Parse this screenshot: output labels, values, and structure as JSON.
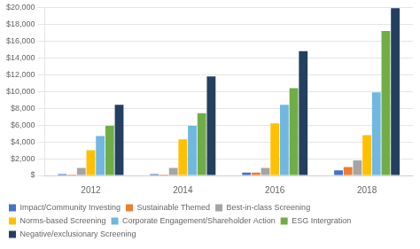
{
  "chart_data": {
    "type": "bar",
    "categories": [
      "2012",
      "2014",
      "2016",
      "2018"
    ],
    "series": [
      {
        "name": "Impact/Community Investing",
        "color": "#4472c4",
        "values": [
          150,
          150,
          350,
          600
        ]
      },
      {
        "name": "Sustainable Themed",
        "color": "#ed7d31",
        "values": [
          100,
          100,
          350,
          1000
        ]
      },
      {
        "name": "Best-in-class Screening",
        "color": "#a5a5a5",
        "values": [
          900,
          900,
          900,
          1800
        ]
      },
      {
        "name": "Norms-based Screening",
        "color": "#ffc000",
        "values": [
          3000,
          4300,
          6200,
          4800
        ]
      },
      {
        "name": "Corporate Engagement/Shareholder Action",
        "color": "#70b8e0",
        "values": [
          4700,
          5900,
          8400,
          9900
        ]
      },
      {
        "name": "ESG Intergration",
        "color": "#70ad47",
        "values": [
          5900,
          7400,
          10400,
          17200
        ]
      },
      {
        "name": "Negative/exclusionary Screening",
        "color": "#243f60",
        "values": [
          8400,
          11800,
          14800,
          19900
        ]
      }
    ],
    "ylim": [
      0,
      20000
    ],
    "yticks": [
      {
        "value": 0,
        "label": "$"
      },
      {
        "value": 2000,
        "label": "$2,000"
      },
      {
        "value": 4000,
        "label": "$4,000"
      },
      {
        "value": 6000,
        "label": "$6,000"
      },
      {
        "value": 8000,
        "label": "$8,000"
      },
      {
        "value": 10000,
        "label": "$10,000"
      },
      {
        "value": 12000,
        "label": "$12,000"
      },
      {
        "value": 14000,
        "label": "$14,000"
      },
      {
        "value": 16000,
        "label": "$16,000"
      },
      {
        "value": 18000,
        "label": "$18,000"
      },
      {
        "value": 20000,
        "label": "$20,000"
      }
    ],
    "grid": true,
    "legend": "bottom"
  }
}
